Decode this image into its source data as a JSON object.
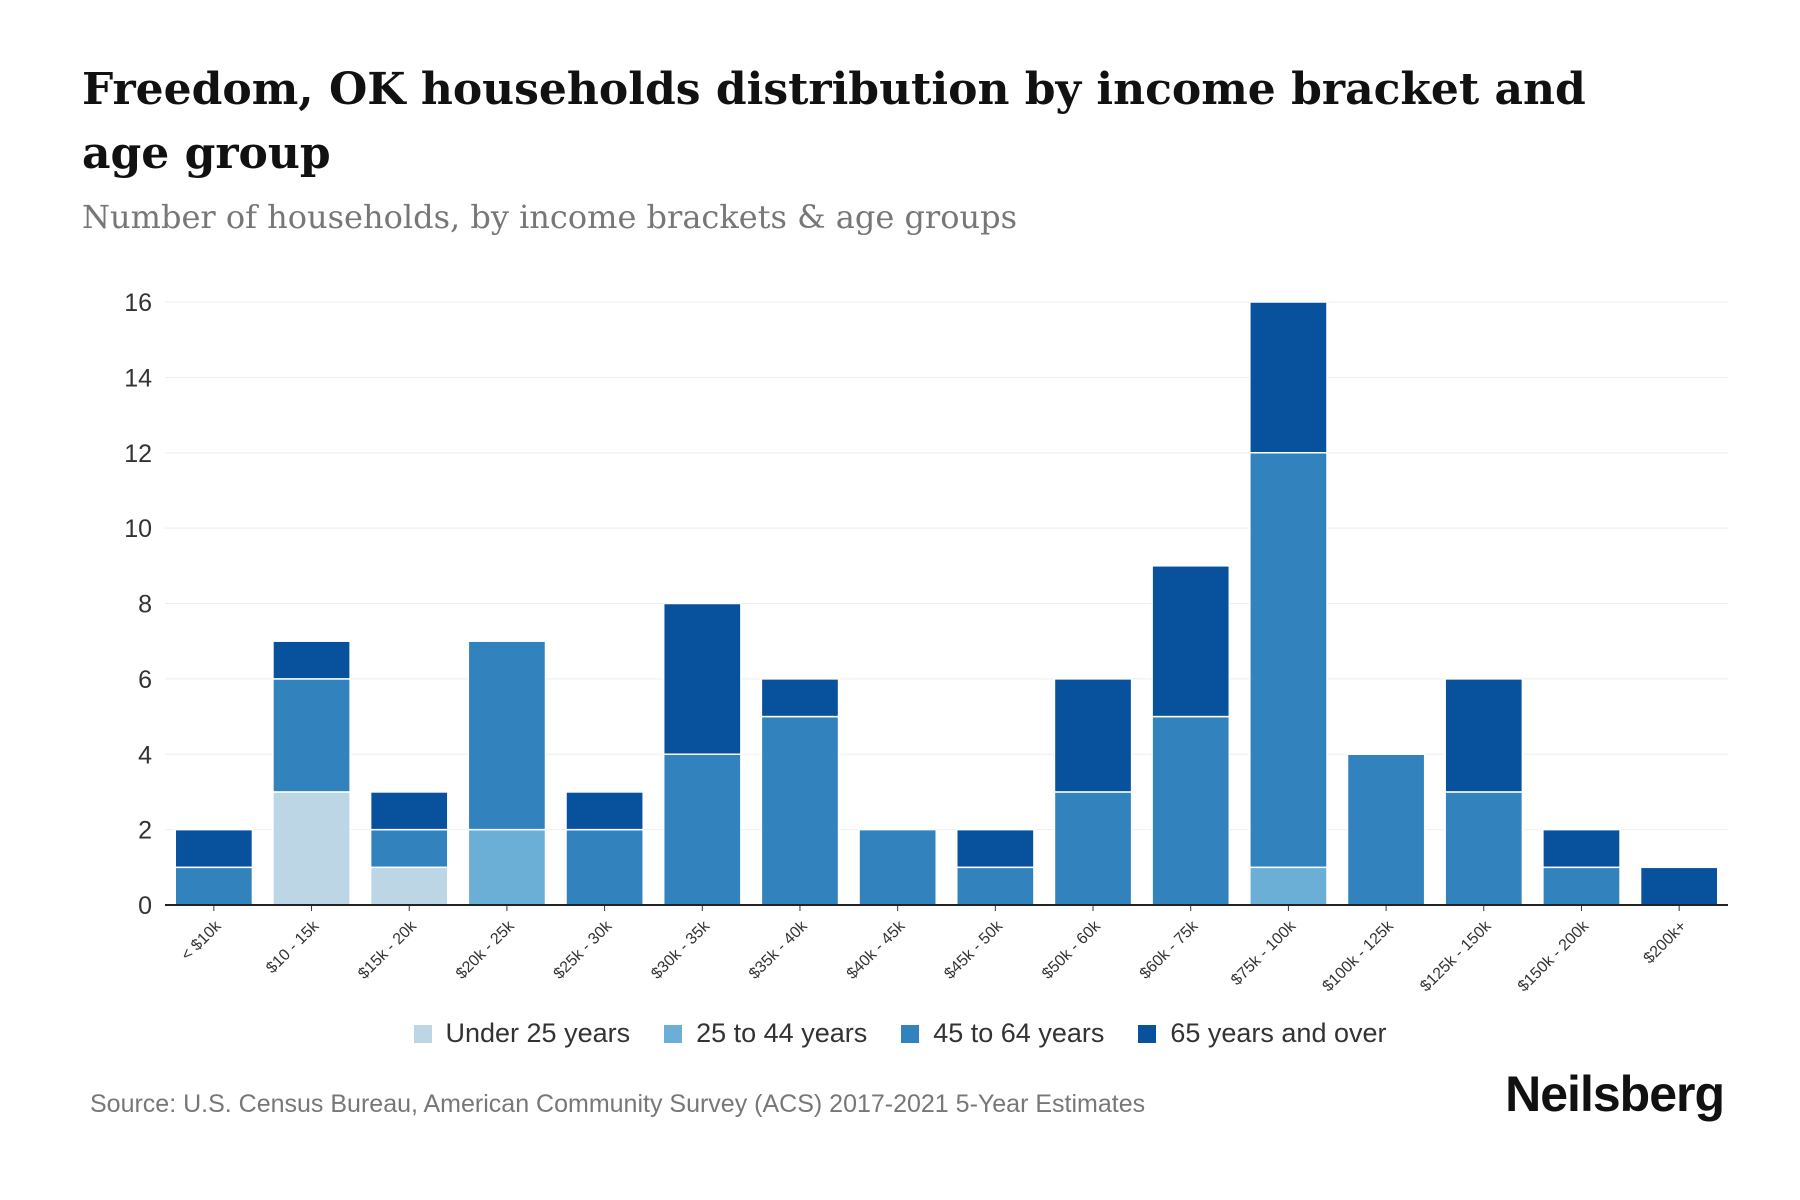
{
  "title": "Freedom, OK households distribution by income bracket and age group",
  "subtitle": "Number of households, by income brackets & age groups",
  "source": "Source: U.S. Census Bureau, American Community Survey (ACS) 2017-2021 5-Year Estimates",
  "logo": "Neilsberg",
  "chart_data": {
    "type": "bar",
    "stacked": true,
    "title": "Freedom, OK households distribution by income bracket and age group",
    "xlabel": "",
    "ylabel": "Number of households",
    "ylim": [
      0,
      16
    ],
    "yticks": [
      0,
      2,
      4,
      6,
      8,
      10,
      12,
      14,
      16
    ],
    "grid": true,
    "legend_position": "bottom-center",
    "categories": [
      "< $10k",
      "$10 - 15k",
      "$15k - 20k",
      "$20k - 25k",
      "$25k - 30k",
      "$30k - 35k",
      "$35k - 40k",
      "$40k - 45k",
      "$45k - 50k",
      "$50k - 60k",
      "$60k - 75k",
      "$75k - 100k",
      "$100k - 125k",
      "$125k - 150k",
      "$150k - 200k",
      "$200k+"
    ],
    "series": [
      {
        "name": "Under 25 years",
        "color": "#bcd6e6",
        "values": [
          0,
          3,
          1,
          0,
          0,
          0,
          0,
          0,
          0,
          0,
          0,
          0,
          0,
          0,
          0,
          0
        ]
      },
      {
        "name": "25 to 44 years",
        "color": "#6baed6",
        "values": [
          0,
          0,
          0,
          2,
          0,
          0,
          0,
          0,
          0,
          0,
          0,
          1,
          0,
          0,
          0,
          0
        ]
      },
      {
        "name": "45 to 64 years",
        "color": "#3282bd",
        "values": [
          1,
          3,
          1,
          5,
          2,
          4,
          5,
          2,
          1,
          3,
          5,
          11,
          4,
          3,
          1,
          0
        ]
      },
      {
        "name": "65 years and over",
        "color": "#08519c",
        "values": [
          1,
          1,
          1,
          0,
          1,
          4,
          1,
          0,
          1,
          3,
          4,
          4,
          0,
          3,
          1,
          1
        ]
      }
    ]
  }
}
